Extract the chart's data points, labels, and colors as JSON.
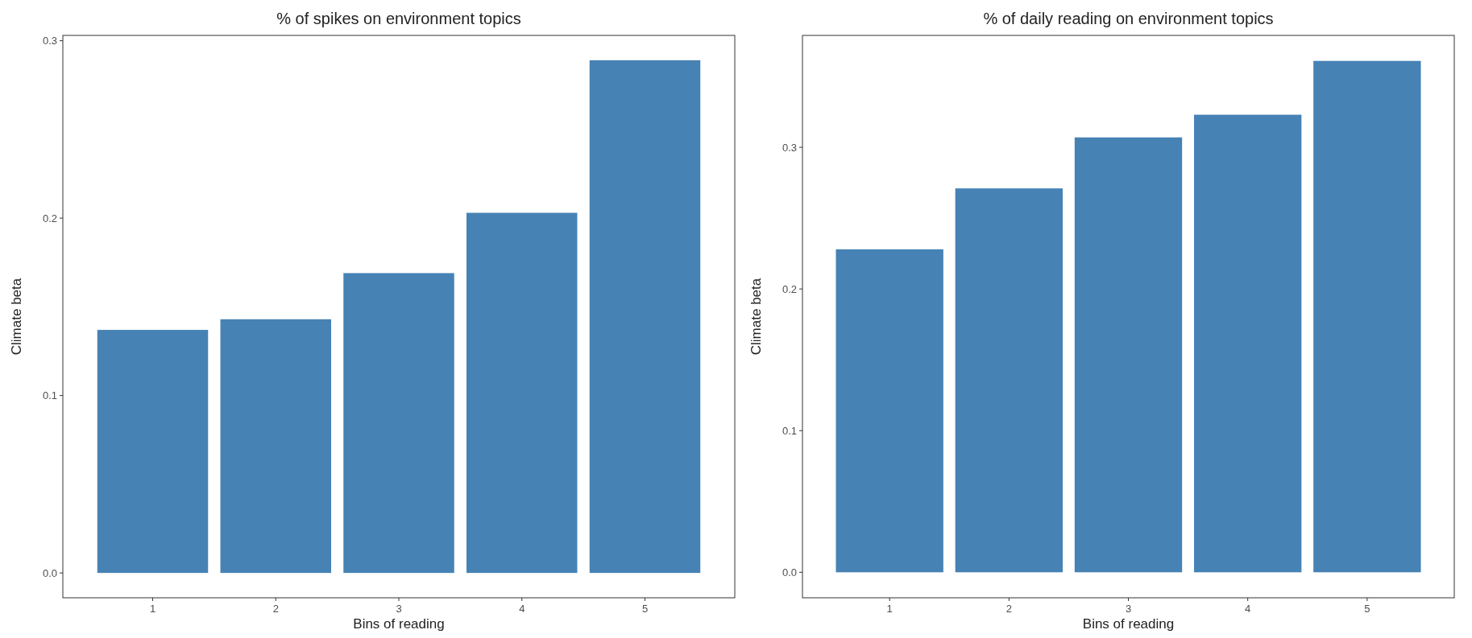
{
  "chart_data": [
    {
      "type": "bar",
      "title": "% of spikes on environment topics",
      "xlabel": "Bins of reading",
      "ylabel": "Climate beta",
      "categories": [
        "1",
        "2",
        "3",
        "4",
        "5"
      ],
      "values": [
        0.137,
        0.143,
        0.169,
        0.203,
        0.289
      ],
      "color": "#4682b4",
      "ylim": [
        -0.014,
        0.303
      ],
      "yticks": [
        {
          "value": 0,
          "label": "0.0"
        },
        0.1,
        0.2,
        0.3
      ]
    },
    {
      "type": "bar",
      "title": "% of daily reading on environment topics",
      "xlabel": "Bins of reading",
      "ylabel": "Climate beta",
      "categories": [
        "1",
        "2",
        "3",
        "4",
        "5"
      ],
      "values": [
        0.228,
        0.271,
        0.307,
        0.323,
        0.361
      ],
      "color": "#4682b4",
      "ylim": [
        -0.018,
        0.379
      ],
      "yticks": [
        {
          "value": 0,
          "label": "0.0"
        },
        0.1,
        0.2,
        0.3
      ]
    }
  ]
}
